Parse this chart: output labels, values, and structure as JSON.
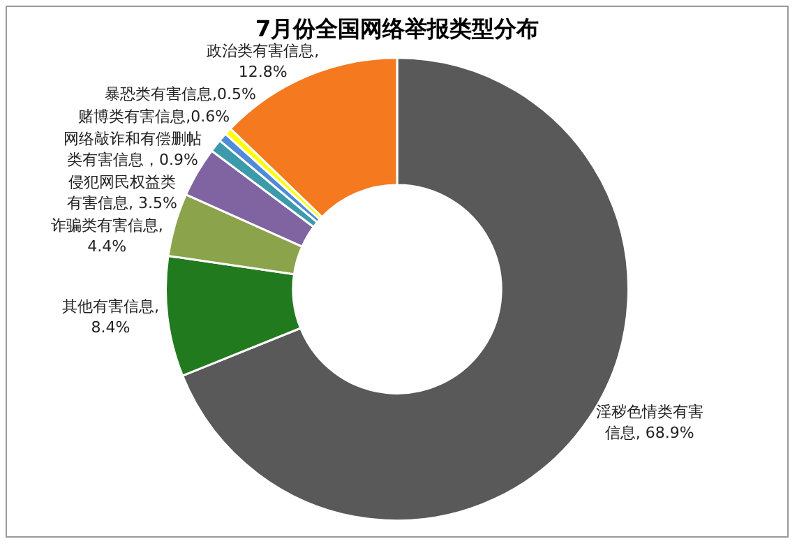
{
  "chart_data": {
    "type": "donut",
    "title": "7月份全国网络举报类型分布",
    "categories": [
      "淫秽色情类有害信息",
      "其他有害信息",
      "诈骗类有害信息",
      "侵犯网民权益类有害信息",
      "网络敲诈和有偿删帖类有害信息",
      "赌博类有害信息",
      "暴恐类有害信息",
      "政治类有害信息"
    ],
    "values": [
      68.9,
      8.4,
      4.4,
      3.5,
      0.9,
      0.6,
      0.5,
      12.8
    ],
    "colors": [
      "#595959",
      "#217a1e",
      "#8ba34b",
      "#8064a2",
      "#3d9aab",
      "#4f8bd6",
      "#ffff00",
      "#f4791f"
    ],
    "value_labels": [
      ", 68.9%",
      ", 8.4%",
      ", 4.4%",
      ", 3.5%",
      "，0.9%",
      ",0.6%",
      ",0.5%",
      ", 12.8%"
    ],
    "legend": false
  }
}
